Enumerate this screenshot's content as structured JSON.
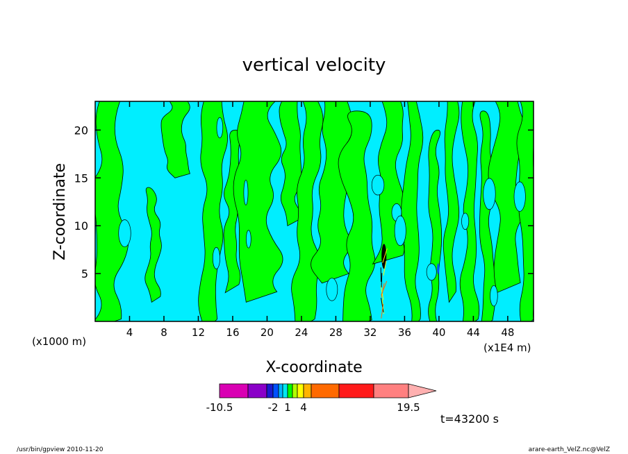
{
  "chart_data": {
    "type": "heatmap",
    "title": "vertical velocity",
    "xlabel": "X-coordinate",
    "ylabel": "Z-coordinate",
    "x_unit_left": "(x1000 m)",
    "x_unit_right": "(x1E4 m)",
    "x_ticks": [
      "4",
      "8",
      "12",
      "16",
      "20",
      "24",
      "28",
      "32",
      "36",
      "40",
      "44",
      "48"
    ],
    "x_tick_values": [
      4,
      8,
      12,
      16,
      20,
      24,
      28,
      32,
      36,
      40,
      44,
      48
    ],
    "y_ticks": [
      "5",
      "10",
      "15",
      "20"
    ],
    "y_tick_values": [
      5,
      10,
      15,
      20
    ],
    "xlim": [
      0,
      51
    ],
    "ylim": [
      0,
      23
    ],
    "colorbar": {
      "tick_labels": [
        "-10.5",
        "-2",
        "1",
        "4",
        "19.5"
      ],
      "tick_values": [
        -10.5,
        -2,
        1,
        4,
        19.5
      ],
      "levels": [
        -10.5,
        -7.5,
        -4.5,
        -2,
        -1,
        0,
        1,
        2,
        3,
        4,
        7.5,
        11.5,
        15.5,
        19.5
      ],
      "colors": [
        "#d900b3",
        "#8a00c8",
        "#1a1acf",
        "#0050ff",
        "#00b4ff",
        "#00e8f0",
        "#00ff00",
        "#b0ff00",
        "#ffff00",
        "#ffb300",
        "#ff6a00",
        "#ff1a1a",
        "#ff8080"
      ],
      "extend_color": "#ffb0b0"
    },
    "field_colors": {
      "negative_weak": "#00eeff",
      "positive_weak": "#00ff00",
      "strong": "#000000"
    },
    "time_label": "t=43200 s"
  },
  "footer": {
    "left": "/usr/bin/gpview   2010-11-20",
    "right": "arare-earth_VelZ.nc@VelZ"
  }
}
